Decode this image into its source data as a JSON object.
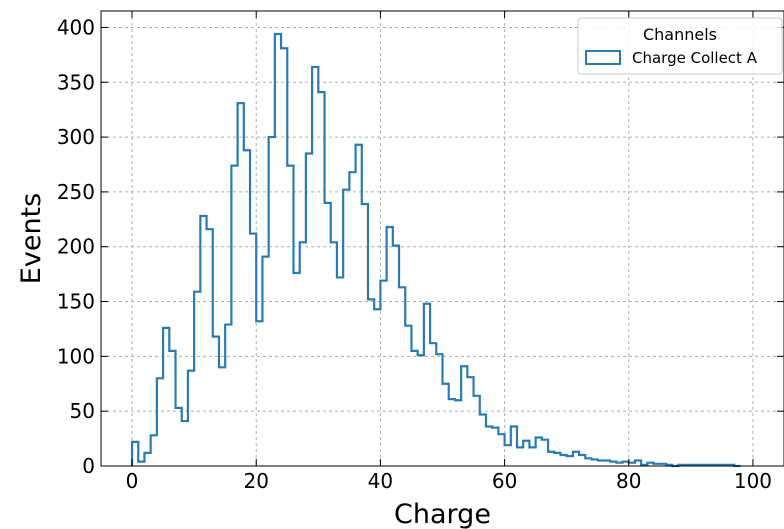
{
  "chart_data": {
    "type": "histogram-step",
    "xlabel": "Charge",
    "ylabel": "Events",
    "xlim": [
      -5,
      105
    ],
    "ylim": [
      0,
      415
    ],
    "xticks": [
      0,
      20,
      40,
      60,
      80,
      100
    ],
    "yticks": [
      0,
      50,
      100,
      150,
      200,
      250,
      300,
      350,
      400
    ],
    "grid": true,
    "legend": {
      "title": "Channels",
      "placement": "top-right",
      "entries": [
        {
          "label": "Charge Collect A",
          "color": "#2b7bb0"
        }
      ]
    },
    "series": [
      {
        "name": "Charge Collect A",
        "color": "#2b7bb0",
        "bin_edges": [
          0,
          1,
          2,
          3,
          4,
          5,
          6,
          7,
          8,
          9,
          10,
          11,
          12,
          13,
          14,
          15,
          16,
          17,
          18,
          19,
          20,
          21,
          22,
          23,
          24,
          25,
          26,
          27,
          28,
          29,
          30,
          31,
          32,
          33,
          34,
          35,
          36,
          37,
          38,
          39,
          40,
          41,
          42,
          43,
          44,
          45,
          46,
          47,
          48,
          49,
          50,
          51,
          52,
          53,
          54,
          55,
          56,
          57,
          58,
          59,
          60,
          61,
          62,
          63,
          64,
          65,
          66,
          67,
          68,
          69,
          70,
          71,
          72,
          73,
          74,
          75,
          76,
          77,
          78,
          79,
          80,
          81,
          82,
          83,
          84,
          85,
          86,
          87,
          88,
          89,
          90,
          91,
          92,
          93,
          94,
          95,
          96,
          97,
          98
        ],
        "counts": [
          22,
          4,
          12,
          28,
          80,
          126,
          105,
          53,
          41,
          87,
          159,
          228,
          216,
          118,
          90,
          129,
          274,
          331,
          288,
          212,
          132,
          191,
          300,
          394,
          381,
          274,
          176,
          204,
          285,
          364,
          341,
          240,
          204,
          172,
          252,
          268,
          293,
          239,
          152,
          143,
          169,
          218,
          201,
          163,
          128,
          105,
          101,
          148,
          112,
          102,
          75,
          61,
          60,
          91,
          81,
          64,
          47,
          36,
          35,
          29,
          19,
          36,
          17,
          23,
          17,
          26,
          24,
          13,
          12,
          10,
          9,
          13,
          10,
          7,
          6,
          5,
          5,
          4,
          3,
          4,
          3,
          5,
          1,
          3,
          2,
          2,
          1,
          0,
          1,
          1,
          1,
          1,
          1,
          1,
          1,
          1,
          1,
          0
        ]
      }
    ]
  }
}
